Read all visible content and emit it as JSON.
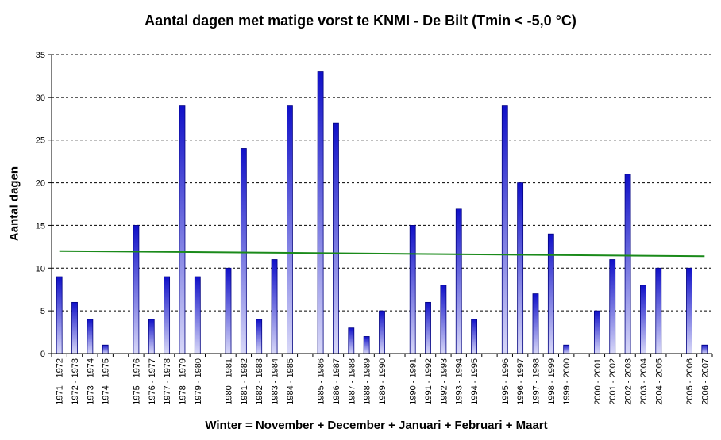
{
  "chart_data": {
    "type": "bar",
    "title": "Aantal dagen met matige vorst te KNMI - De Bilt (Tmin < -5,0 °C)",
    "xlabel": "Winter = November + December + Januari + Februari + Maart",
    "ylabel": "Aantal dagen",
    "ylim": [
      0,
      35
    ],
    "yticks": [
      0,
      5,
      10,
      15,
      20,
      25,
      30,
      35
    ],
    "grid": "horizontal dashed",
    "categories": [
      "1971 - 1972",
      "1972 - 1973",
      "1973 - 1974",
      "1974 - 1975",
      "",
      "1975 - 1976",
      "1976 - 1977",
      "1977 - 1978",
      "1978 - 1979",
      "1979 - 1980",
      "",
      "1980 - 1981",
      "1981 - 1982",
      "1982 - 1983",
      "1983 - 1984",
      "1984 - 1985",
      "",
      "1985 - 1986",
      "1986 - 1987",
      "1987 - 1988",
      "1988 - 1989",
      "1989 - 1990",
      "",
      "1990 - 1991",
      "1991 - 1992",
      "1992 - 1993",
      "1993 - 1994",
      "1994 - 1995",
      "",
      "1995 - 1996",
      "1996 - 1997",
      "1997 - 1998",
      "1998 - 1999",
      "1999 - 2000",
      "",
      "2000 - 2001",
      "2001 - 2002",
      "2002 - 2003",
      "2003 - 2004",
      "2004 - 2005",
      "",
      "2005 - 2006",
      "2006 - 2007"
    ],
    "values": [
      9,
      6,
      4,
      1,
      null,
      15,
      4,
      9,
      29,
      9,
      null,
      10,
      24,
      4,
      11,
      29,
      null,
      33,
      27,
      3,
      2,
      5,
      null,
      15,
      6,
      8,
      17,
      4,
      null,
      29,
      20,
      7,
      14,
      1,
      null,
      5,
      11,
      21,
      8,
      10,
      null,
      10,
      1
    ],
    "trend": {
      "start": 12.0,
      "end": 11.4
    },
    "colors": {
      "bar_top": "#1010c8",
      "bar_bottom": "#d8d8f8",
      "bar_edge": "#000080",
      "trend": "#1a8a1a",
      "grid": "#000000",
      "axis": "#000000"
    }
  }
}
